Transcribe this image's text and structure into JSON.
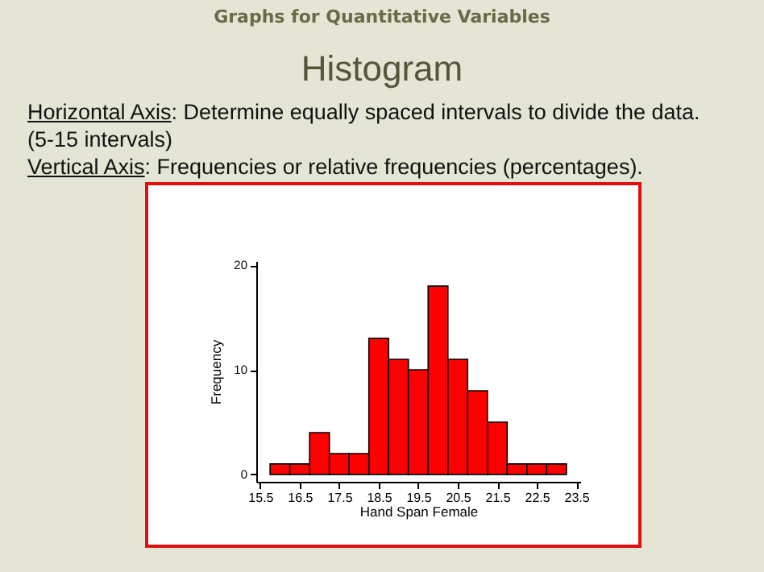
{
  "chart_data": {
    "type": "histogram",
    "title": "Histogram",
    "subtitle": "Graphs for Quantitative Variables",
    "annotations": [
      "Horizontal Axis: Determine equally spaced intervals to divide the data.",
      "(5-15 intervals)",
      "Vertical Axis: Frequencies or relative frequencies (percentages)."
    ],
    "xlabel": "Hand Span Female",
    "ylabel": "Frequency",
    "bins": [
      15.75,
      16.25,
      16.75,
      17.25,
      17.75,
      18.25,
      18.75,
      19.25,
      19.75,
      20.25,
      20.75,
      21.25,
      21.75,
      22.25,
      22.75,
      23.25
    ],
    "values": [
      1,
      1,
      4,
      2,
      2,
      13,
      11,
      10,
      18,
      11,
      8,
      5,
      1,
      1,
      1
    ],
    "color": "#ff0000",
    "xlim": [
      15.4,
      23.6
    ],
    "xticks": [
      15.5,
      16.5,
      17.5,
      18.5,
      19.5,
      20.5,
      21.5,
      22.5,
      23.5
    ],
    "ylim": [
      -0.7,
      20.4
    ],
    "yticks": [
      0,
      10,
      20
    ],
    "grid": false
  }
}
